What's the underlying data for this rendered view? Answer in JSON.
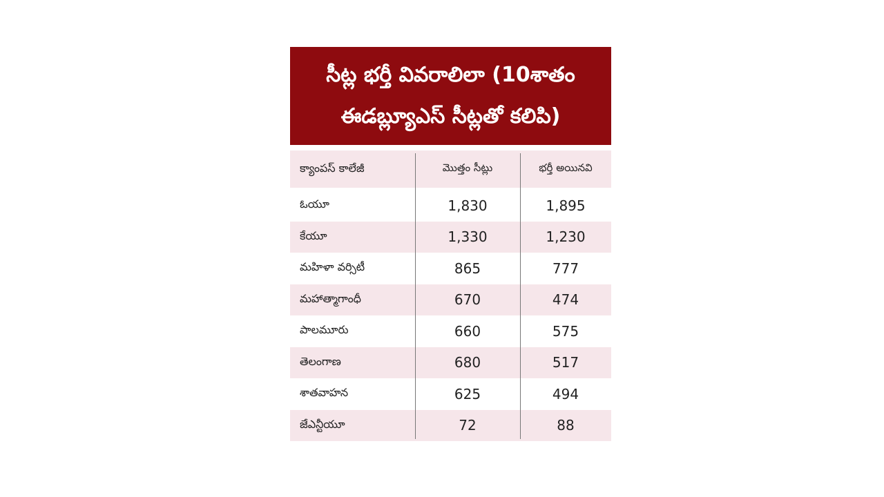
{
  "title": {
    "lines": [
      "సీట్ల భర్తీ వివరాలిలా (10శాతం",
      "ఈడబ్ల్యూఎస్ సీట్లతో కలిపి)"
    ]
  },
  "table": {
    "header": [
      "క్యాంపస్ కాలేజీ",
      "మొత్తం సీట్లు",
      "భర్తీ అయినవి"
    ],
    "rows": [
      [
        "ఓయూ",
        "1,830",
        "1,895"
      ],
      [
        "కేయూ",
        "1,330",
        "1,230"
      ],
      [
        "మహిళా వర్సిటీ",
        "865",
        "777"
      ],
      [
        "మహాత్మాగాంధీ",
        "670",
        "474"
      ],
      [
        "పాలమూరు",
        "660",
        "575"
      ],
      [
        "తెలంగాణ",
        "680",
        "517"
      ],
      [
        "శాతవాహన",
        "625",
        "494"
      ],
      [
        "జేఎన్టీయూ",
        "72",
        "88"
      ]
    ]
  }
}
